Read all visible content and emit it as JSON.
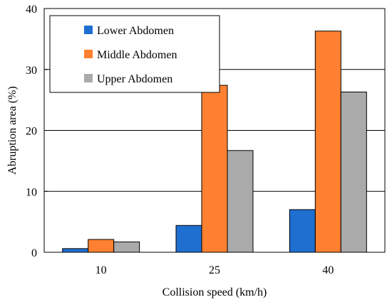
{
  "chart_data": {
    "type": "bar",
    "title": "",
    "xlabel": "Collision speed (km/h)",
    "ylabel": "Abruption area (%)",
    "categories": [
      "10",
      "25",
      "40"
    ],
    "ylim": [
      0,
      40
    ],
    "yticks": [
      0,
      10,
      20,
      30,
      40
    ],
    "grid": true,
    "legend_position": "top-left",
    "series": [
      {
        "name": "Lower Abdomen",
        "color": "#1f6fd1",
        "values": [
          0.6,
          4.4,
          7.0
        ]
      },
      {
        "name": "Middle Abdomen",
        "color": "#ff8030",
        "values": [
          2.1,
          27.4,
          36.3
        ]
      },
      {
        "name": "Upper Abdomen",
        "color": "#aaaaaa",
        "values": [
          1.7,
          16.7,
          26.3
        ]
      }
    ]
  }
}
